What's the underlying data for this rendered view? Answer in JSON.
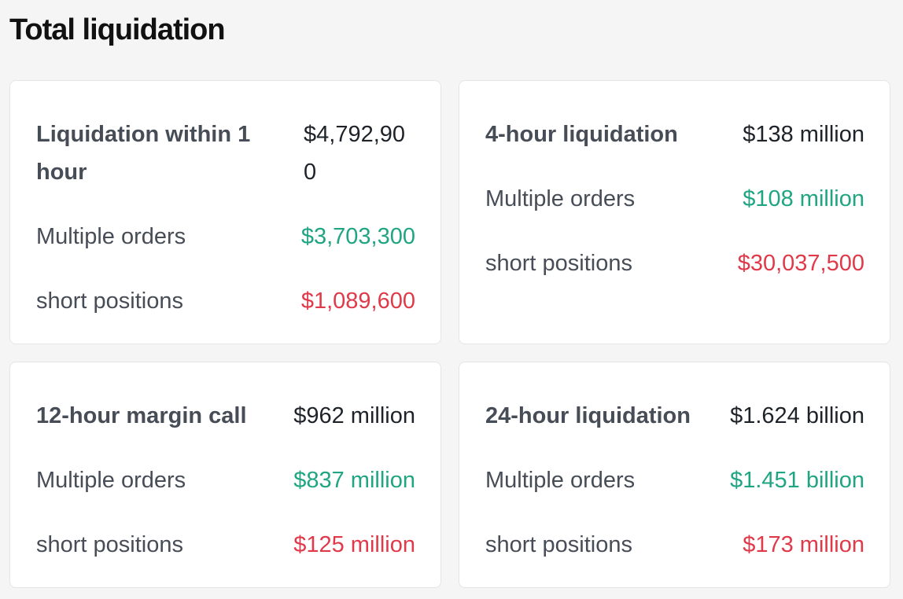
{
  "title": "Total liquidation",
  "cards": [
    {
      "header_label": "Liquidation within 1 hour",
      "header_value": "$4,792,900",
      "long_label": "Multiple orders",
      "long_value": "$3,703,300",
      "short_label": "short positions",
      "short_value": "$1,089,600"
    },
    {
      "header_label": "4-hour liquidation",
      "header_value": "$138 million",
      "long_label": "Multiple orders",
      "long_value": "$108 million",
      "short_label": "short positions",
      "short_value": "$30,037,500"
    },
    {
      "header_label": "12-hour margin call",
      "header_value": "$962 million",
      "long_label": "Multiple orders",
      "long_value": "$837 million",
      "short_label": "short positions",
      "short_value": "$125 million"
    },
    {
      "header_label": "24-hour liquidation",
      "header_value": "$1.624 billion",
      "long_label": "Multiple orders",
      "long_value": "$1.451 billion",
      "short_label": "short positions",
      "short_value": "$173 million"
    }
  ],
  "colors": {
    "positive": "#20a583",
    "negative": "#e03a4a",
    "label": "#474d57",
    "value": "#1e2329"
  }
}
